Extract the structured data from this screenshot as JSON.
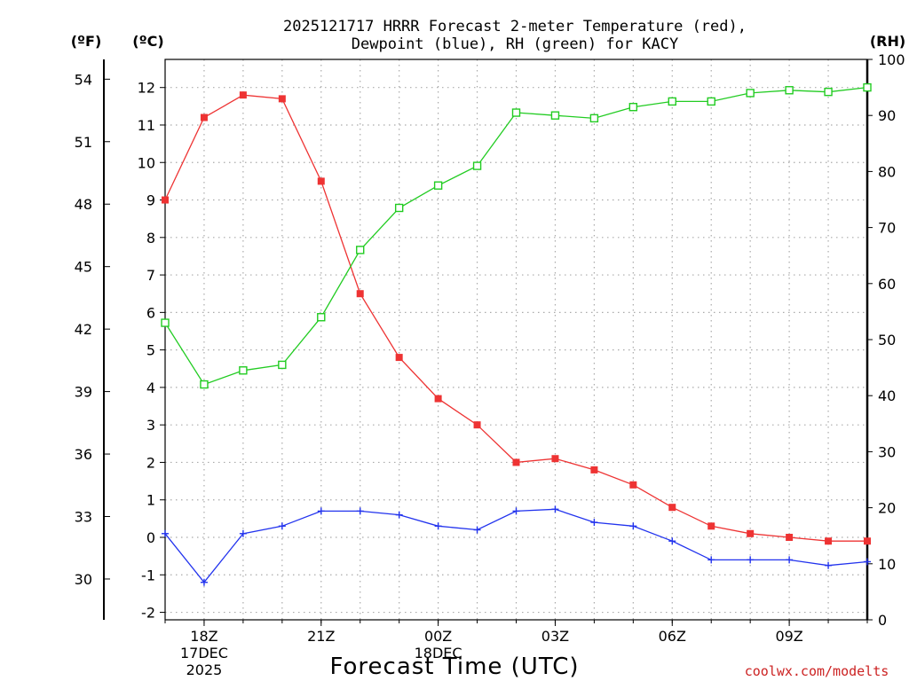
{
  "chart_data": {
    "type": "line",
    "title_line1": "2025121717 HRRR Forecast 2-meter Temperature (red),",
    "title_line2": "Dewpoint (blue), RH (green) for KACY",
    "xlabel": "Forecast Time (UTC)",
    "credit": "coolwx.com/modelts",
    "units": {
      "fahrenheit": "(ºF)",
      "celsius": "(ºC)",
      "rh": "(RH)"
    },
    "x_hours": [
      0,
      1,
      2,
      3,
      4,
      5,
      6,
      7,
      8,
      9,
      10,
      11,
      12,
      13,
      14,
      15,
      16,
      17,
      18
    ],
    "x_range": [
      0,
      18
    ],
    "x_ticks": [
      {
        "hour": 1,
        "lines": [
          "18Z",
          "17DEC",
          "2025"
        ]
      },
      {
        "hour": 4,
        "lines": [
          "21Z"
        ]
      },
      {
        "hour": 7,
        "lines": [
          "00Z",
          "18DEC"
        ]
      },
      {
        "hour": 10,
        "lines": [
          "03Z"
        ]
      },
      {
        "hour": 13,
        "lines": [
          "06Z"
        ]
      },
      {
        "hour": 16,
        "lines": [
          "09Z"
        ]
      }
    ],
    "y_celsius": {
      "range": [
        -2.2,
        12.75
      ],
      "ticks": [
        -2,
        -1,
        0,
        1,
        2,
        3,
        4,
        5,
        6,
        7,
        8,
        9,
        10,
        11,
        12
      ]
    },
    "y_fahrenheit": {
      "ticks": [
        30,
        33,
        36,
        39,
        42,
        45,
        48,
        51,
        54
      ]
    },
    "y_rh": {
      "range": [
        0,
        100
      ],
      "ticks": [
        0,
        10,
        20,
        30,
        40,
        50,
        60,
        70,
        80,
        90,
        100
      ]
    },
    "series": [
      {
        "name": "2-meter Temperature",
        "color": "#ee3333",
        "axis": "celsius",
        "marker": "filled-square",
        "values": [
          9.0,
          11.2,
          11.8,
          11.7,
          9.5,
          6.5,
          4.8,
          3.7,
          3.0,
          2.0,
          2.1,
          1.8,
          1.4,
          0.8,
          0.3,
          0.1,
          0.0,
          -0.1,
          -0.1
        ]
      },
      {
        "name": "Dewpoint",
        "color": "#2233ee",
        "axis": "celsius",
        "marker": "plus",
        "values": [
          0.1,
          -1.2,
          0.1,
          0.3,
          0.7,
          0.7,
          0.6,
          0.3,
          0.2,
          0.7,
          0.75,
          0.4,
          0.3,
          -0.1,
          -0.6,
          -0.6,
          -0.6,
          -0.75,
          -0.65
        ]
      },
      {
        "name": "RH",
        "color": "#22cc22",
        "axis": "rh",
        "marker": "open-square",
        "values": [
          53,
          42,
          44.5,
          45.5,
          54,
          66,
          73.5,
          77.5,
          81,
          90.5,
          90,
          89.5,
          91.5,
          92.5,
          92.5,
          94,
          94.5,
          94.2,
          95
        ]
      }
    ]
  }
}
